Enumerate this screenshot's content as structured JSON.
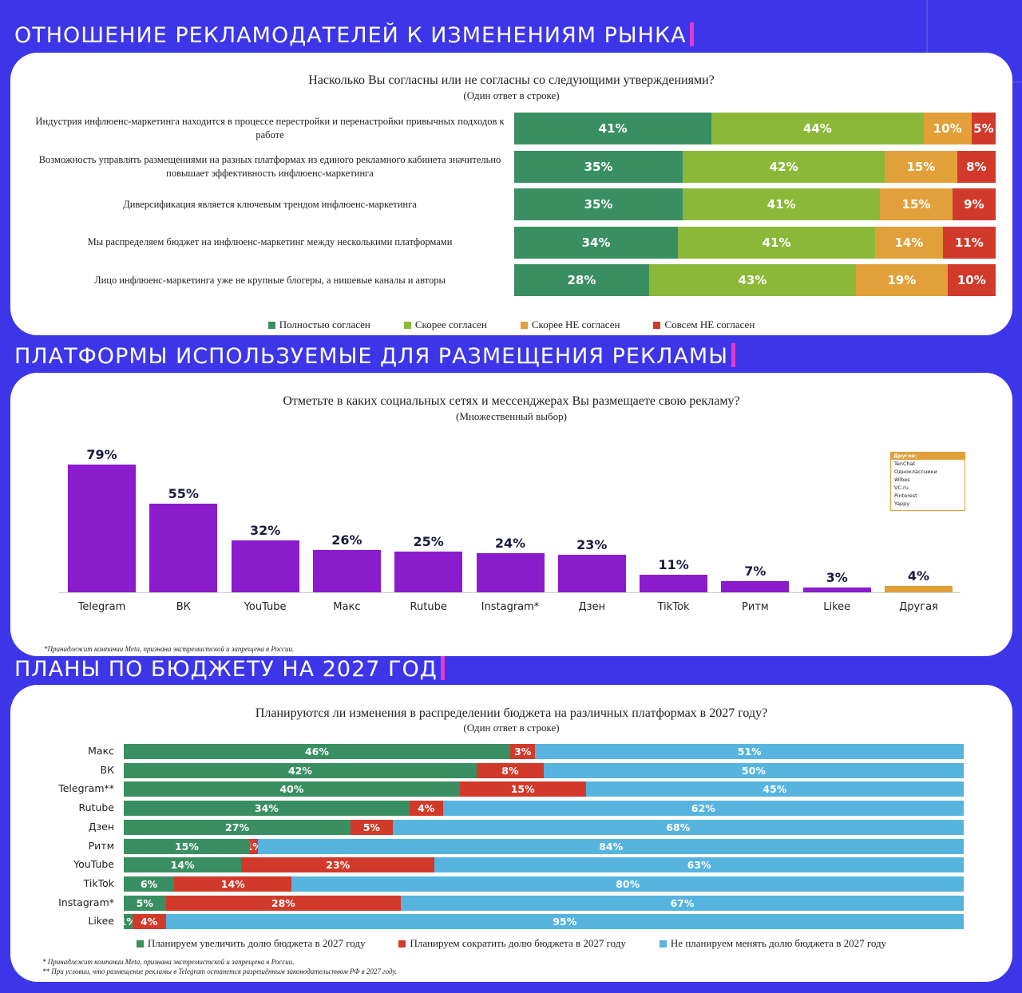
{
  "sections": {
    "s1": "ОТНОШЕНИЕ РЕКЛАМОДАТЕЛЕЙ К ИЗМЕНЕНИЯМ РЫНКА",
    "s2": "ПЛАТФОРМЫ ИСПОЛЬЗУЕМЫЕ ДЛЯ РАЗМЕЩЕНИЯ РЕКЛАМЫ",
    "s3": "ПЛАНЫ ПО БЮДЖЕТУ НА 2027 ГОД"
  },
  "colors": {
    "bg": "#3d35e8",
    "green_dark": "#3a8f62",
    "green_light": "#8cb83a",
    "orange": "#e1a03a",
    "red": "#d13a2a",
    "purple": "#8a1ccc",
    "blue": "#56b4df"
  },
  "chart_data": [
    {
      "type": "bar",
      "orientation": "horizontal-stacked",
      "title": "Насколько Вы согласны или не согласны со следующими утверждениями?",
      "subtitle": "(Один ответ в строке)",
      "categories": [
        "Индустрия инфлюенс-маркетинга находится в процессе перестройки и перенастройки привычных подходов к работе",
        "Возможность управлять размещениями на разных платформах из единого рекламного кабинета значительно повышает эффективность инфлюенс-маркетинга",
        "Диверсификация является ключевым трендом инфлюенс-маркетинга",
        "Мы распределяем бюджет на инфлюенс-маркетинг между несколькими платформами",
        "Лицо инфлюенс-маркетинга уже не крупные блогеры, а нишевые каналы и авторы"
      ],
      "series": [
        {
          "name": "Полностью согласен",
          "values": [
            41,
            35,
            35,
            34,
            28
          ]
        },
        {
          "name": "Скорее согласен",
          "values": [
            44,
            42,
            41,
            41,
            43
          ]
        },
        {
          "name": "Скорее НЕ согласен",
          "values": [
            10,
            15,
            15,
            14,
            19
          ]
        },
        {
          "name": "Совсем НЕ согласен",
          "values": [
            5,
            8,
            9,
            11,
            10
          ]
        }
      ],
      "legend": "bottom"
    },
    {
      "type": "bar",
      "title": "Отметьте в каких социальных сетях и мессенджерах Вы размещаете свою рекламу?",
      "subtitle": "(Множественный выбор)",
      "categories": [
        "Telegram",
        "ВК",
        "YouTube",
        "Макс",
        "Rutube",
        "Instagram*",
        "Дзен",
        "TikTok",
        "Ритм",
        "Likee",
        "Другая"
      ],
      "values": [
        79,
        55,
        32,
        26,
        25,
        24,
        23,
        11,
        7,
        3,
        4
      ],
      "other_title": "Другое:",
      "other_items": [
        "TenChat",
        "Одноклассники",
        "Wibes",
        "VC.ru",
        "Pinterest",
        "Yappy"
      ],
      "footnote": "*Принадлежит компании Meta, признана экстремистской и запрещена в России."
    },
    {
      "type": "bar",
      "orientation": "horizontal-stacked",
      "title": "Планируются ли изменения в распределении бюджета на различных платформах в 2027 году?",
      "subtitle": "(Один ответ в строке)",
      "categories": [
        "Макс",
        "ВК",
        "Telegram**",
        "Rutube",
        "Дзен",
        "Ритм",
        "YouTube",
        "TikTok",
        "Instagram*",
        "Likee"
      ],
      "series": [
        {
          "name": "Планируем увеличить долю бюджета в 2027 году",
          "values": [
            46,
            42,
            40,
            34,
            27,
            15,
            14,
            6,
            5,
            1
          ]
        },
        {
          "name": "Планируем сократить долю бюджета в 2027 году",
          "values": [
            3,
            8,
            15,
            4,
            5,
            1,
            23,
            14,
            28,
            4
          ]
        },
        {
          "name": "Не планируем менять долю бюджета в 2027 году",
          "values": [
            51,
            50,
            45,
            62,
            68,
            84,
            63,
            80,
            67,
            95
          ]
        }
      ],
      "legend": "bottom",
      "footnotes": [
        "* Принадлежит компании Meta, признана экстремистской и запрещена в России.",
        "** При условии, что размещение рекламы в Telegram останется разрешённым законодательством РФ в 2027 году."
      ]
    }
  ]
}
